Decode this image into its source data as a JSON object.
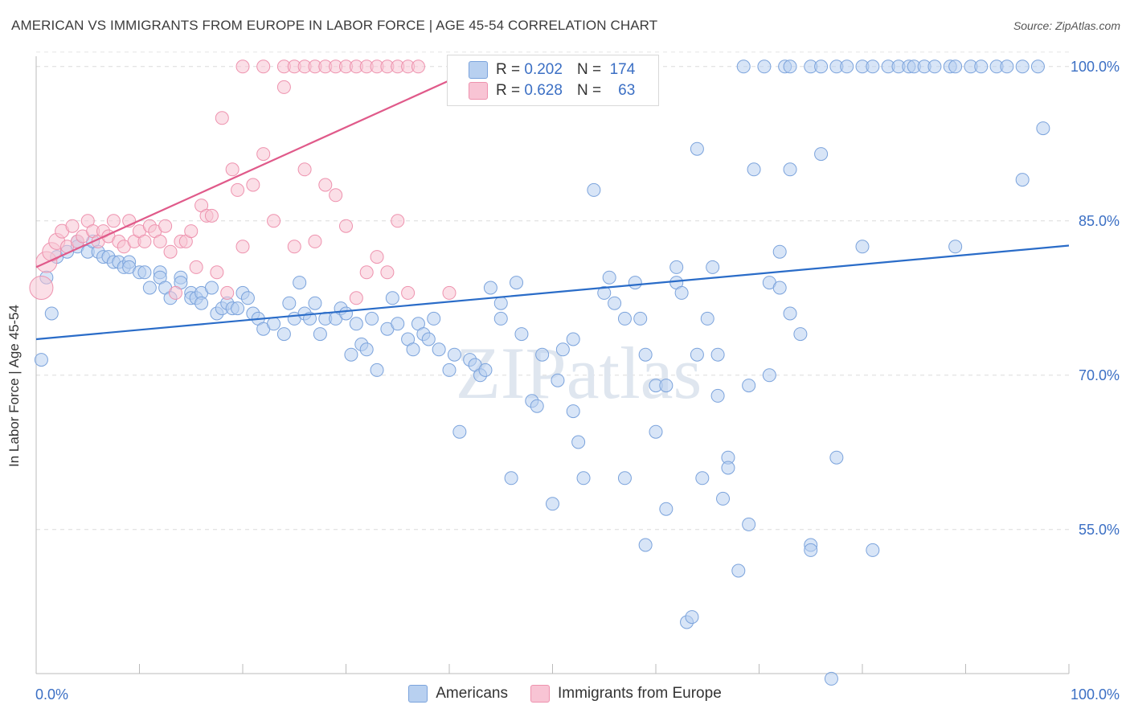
{
  "title": "AMERICAN VS IMMIGRANTS FROM EUROPE IN LABOR FORCE | AGE 45-54 CORRELATION CHART",
  "source": "Source: ZipAtlas.com",
  "watermark": "ZIPatlas",
  "legend": {
    "rows": [
      {
        "r_label": "R =",
        "r_value": "0.202",
        "n_label": "N =",
        "n_value": "174",
        "color": "#b8d0f0",
        "border": "#7ba3dc"
      },
      {
        "r_label": "R =",
        "r_value": "0.628",
        "n_label": "N =",
        "n_value": "63",
        "color": "#f8c4d4",
        "border": "#ee92ae"
      }
    ]
  },
  "bottom_legend": [
    "Americans",
    "Immigrants from Europe"
  ],
  "chart_data": {
    "type": "scatter",
    "xlabel": "",
    "ylabel": "In Labor Force | Age 45-54",
    "x_ticks": [
      "0.0%",
      "100.0%"
    ],
    "y_ticks": [
      "55.0%",
      "70.0%",
      "85.0%",
      "100.0%"
    ],
    "xlim": [
      0,
      100
    ],
    "ylim": [
      41,
      101
    ],
    "grid": true,
    "series": [
      {
        "name": "Americans",
        "color": "#7ba3dc",
        "fill": "#b8d0f0",
        "trend": {
          "x": [
            0,
            100
          ],
          "y": [
            73.5,
            82.6
          ]
        },
        "points": [
          [
            1,
            79.5
          ],
          [
            1.5,
            76
          ],
          [
            0.5,
            71.5
          ],
          [
            2,
            81.5
          ],
          [
            3,
            82
          ],
          [
            4,
            83
          ],
          [
            4,
            82.5
          ],
          [
            5,
            82
          ],
          [
            5.5,
            83
          ],
          [
            6,
            82
          ],
          [
            6.5,
            81.5
          ],
          [
            7,
            81.5
          ],
          [
            7.5,
            81
          ],
          [
            8,
            81
          ],
          [
            8.5,
            80.5
          ],
          [
            9,
            81
          ],
          [
            9,
            80.5
          ],
          [
            10,
            80
          ],
          [
            10.5,
            80
          ],
          [
            11,
            78.5
          ],
          [
            12,
            80
          ],
          [
            12,
            79.5
          ],
          [
            12.5,
            78.5
          ],
          [
            13,
            77.5
          ],
          [
            14,
            79.5
          ],
          [
            14,
            79
          ],
          [
            15,
            78
          ],
          [
            15,
            77.5
          ],
          [
            15.5,
            77.5
          ],
          [
            16,
            78
          ],
          [
            16,
            77
          ],
          [
            17,
            78.5
          ],
          [
            17.5,
            76
          ],
          [
            18,
            76.5
          ],
          [
            18.5,
            77
          ],
          [
            19,
            76.5
          ],
          [
            19.5,
            76.5
          ],
          [
            20,
            78
          ],
          [
            20.5,
            77.5
          ],
          [
            21,
            76
          ],
          [
            21.5,
            75.5
          ],
          [
            22,
            74.5
          ],
          [
            23,
            75
          ],
          [
            24,
            74
          ],
          [
            24.5,
            77
          ],
          [
            25,
            75.5
          ],
          [
            25.5,
            79
          ],
          [
            26,
            76
          ],
          [
            26.5,
            75.5
          ],
          [
            27,
            77
          ],
          [
            27.5,
            74
          ],
          [
            28,
            75.5
          ],
          [
            29,
            75.5
          ],
          [
            29.5,
            76.5
          ],
          [
            30,
            76
          ],
          [
            30.5,
            72
          ],
          [
            31,
            75
          ],
          [
            31.5,
            73
          ],
          [
            32,
            72.5
          ],
          [
            32.5,
            75.5
          ],
          [
            33,
            70.5
          ],
          [
            34,
            74.5
          ],
          [
            34.5,
            77.5
          ],
          [
            35,
            75
          ],
          [
            36,
            73.5
          ],
          [
            36.5,
            72.5
          ],
          [
            37,
            75
          ],
          [
            37.5,
            74
          ],
          [
            38,
            73.5
          ],
          [
            38.5,
            75.5
          ],
          [
            39,
            72.5
          ],
          [
            40,
            70.5
          ],
          [
            40.5,
            72
          ],
          [
            41,
            64.5
          ],
          [
            42,
            71.5
          ],
          [
            42.5,
            71
          ],
          [
            43,
            70
          ],
          [
            43.5,
            70.5
          ],
          [
            44,
            78.5
          ],
          [
            45,
            77
          ],
          [
            45,
            75.5
          ],
          [
            46,
            60
          ],
          [
            46.5,
            79
          ],
          [
            47,
            74
          ],
          [
            48,
            67.5
          ],
          [
            48.5,
            67
          ],
          [
            49,
            72
          ],
          [
            50,
            57.5
          ],
          [
            50.5,
            69.5
          ],
          [
            51,
            72.5
          ],
          [
            52,
            66.5
          ],
          [
            52,
            73.5
          ],
          [
            52.5,
            63.5
          ],
          [
            53,
            60
          ],
          [
            54,
            88
          ],
          [
            55,
            78
          ],
          [
            55.5,
            79.5
          ],
          [
            56,
            77
          ],
          [
            57,
            75.5
          ],
          [
            57,
            60
          ],
          [
            58,
            79
          ],
          [
            58.5,
            75.5
          ],
          [
            59,
            53.5
          ],
          [
            59,
            72
          ],
          [
            60,
            69
          ],
          [
            60,
            64.5
          ],
          [
            61,
            57
          ],
          [
            61,
            69
          ],
          [
            62,
            79
          ],
          [
            62,
            80.5
          ],
          [
            62.5,
            78
          ],
          [
            63,
            46
          ],
          [
            63.5,
            46.5
          ],
          [
            64,
            92
          ],
          [
            64,
            72
          ],
          [
            64.5,
            60
          ],
          [
            65,
            75.5
          ],
          [
            65.5,
            80.5
          ],
          [
            66,
            68
          ],
          [
            66,
            72
          ],
          [
            66.5,
            58
          ],
          [
            67,
            62
          ],
          [
            67,
            61
          ],
          [
            68,
            51
          ],
          [
            69,
            55.5
          ],
          [
            69,
            69
          ],
          [
            69.5,
            90
          ],
          [
            71,
            79
          ],
          [
            71,
            70
          ],
          [
            72,
            78.5
          ],
          [
            72,
            82
          ],
          [
            73,
            90
          ],
          [
            73,
            76
          ],
          [
            74,
            74
          ],
          [
            75,
            53.5
          ],
          [
            75,
            53
          ],
          [
            76,
            91.5
          ],
          [
            77,
            40.5
          ],
          [
            77.5,
            62
          ],
          [
            80,
            82.5
          ],
          [
            81,
            53
          ],
          [
            89,
            82.5
          ],
          [
            95.5,
            89
          ],
          [
            97.5,
            94
          ],
          [
            68.5,
            100
          ],
          [
            70.5,
            100
          ],
          [
            72.5,
            100
          ],
          [
            73,
            100
          ],
          [
            75,
            100
          ],
          [
            76,
            100
          ],
          [
            77.5,
            100
          ],
          [
            78.5,
            100
          ],
          [
            80,
            100
          ],
          [
            81,
            100
          ],
          [
            82.5,
            100
          ],
          [
            83.5,
            100
          ],
          [
            84.5,
            100
          ],
          [
            85,
            100
          ],
          [
            86,
            100
          ],
          [
            87,
            100
          ],
          [
            88.5,
            100
          ],
          [
            89,
            100
          ],
          [
            90.5,
            100
          ],
          [
            91.5,
            100
          ],
          [
            93,
            100
          ],
          [
            94,
            100
          ],
          [
            95.5,
            100
          ],
          [
            97,
            100
          ]
        ]
      },
      {
        "name": "Immigrants from Europe",
        "color": "#ee92ae",
        "fill": "#f8c4d4",
        "trend": {
          "x": [
            0,
            43
          ],
          "y": [
            80.5,
            100
          ]
        },
        "points": [
          [
            0.5,
            78.5
          ],
          [
            1,
            81
          ],
          [
            1.5,
            82
          ],
          [
            2,
            83
          ],
          [
            2.5,
            84
          ],
          [
            3,
            82.5
          ],
          [
            3.5,
            84.5
          ],
          [
            4,
            83
          ],
          [
            4.5,
            83.5
          ],
          [
            5,
            85
          ],
          [
            5.5,
            84
          ],
          [
            6,
            83
          ],
          [
            6.5,
            84
          ],
          [
            7,
            83.5
          ],
          [
            7.5,
            85
          ],
          [
            8,
            83
          ],
          [
            8.5,
            82.5
          ],
          [
            9,
            85
          ],
          [
            9.5,
            83
          ],
          [
            10,
            84
          ],
          [
            10.5,
            83
          ],
          [
            11,
            84.5
          ],
          [
            11.5,
            84
          ],
          [
            12,
            83
          ],
          [
            12.5,
            84.5
          ],
          [
            13,
            82
          ],
          [
            13.5,
            78
          ],
          [
            14,
            83
          ],
          [
            14.5,
            83
          ],
          [
            15,
            84
          ],
          [
            15.5,
            80.5
          ],
          [
            16,
            86.5
          ],
          [
            16.5,
            85.5
          ],
          [
            17,
            85.5
          ],
          [
            17.5,
            80
          ],
          [
            18,
            95
          ],
          [
            18.5,
            78
          ],
          [
            19,
            90
          ],
          [
            19.5,
            88
          ],
          [
            20,
            82.5
          ],
          [
            21,
            88.5
          ],
          [
            22,
            91.5
          ],
          [
            23,
            85
          ],
          [
            24,
            98
          ],
          [
            25,
            82.5
          ],
          [
            26,
            90
          ],
          [
            27,
            83
          ],
          [
            28,
            88.5
          ],
          [
            29,
            87.5
          ],
          [
            30,
            84.5
          ],
          [
            31,
            77.5
          ],
          [
            32,
            80
          ],
          [
            33,
            81.5
          ],
          [
            34,
            80
          ],
          [
            35,
            85
          ],
          [
            36,
            78
          ],
          [
            40,
            78
          ],
          [
            20,
            100
          ],
          [
            22,
            100
          ],
          [
            24,
            100
          ],
          [
            25,
            100
          ],
          [
            26,
            100
          ],
          [
            27,
            100
          ],
          [
            28,
            100
          ],
          [
            29,
            100
          ],
          [
            30,
            100
          ],
          [
            31,
            100
          ],
          [
            32,
            100
          ],
          [
            33,
            100
          ],
          [
            34,
            100
          ],
          [
            35,
            100
          ],
          [
            36,
            100
          ],
          [
            37,
            100
          ]
        ]
      }
    ]
  }
}
